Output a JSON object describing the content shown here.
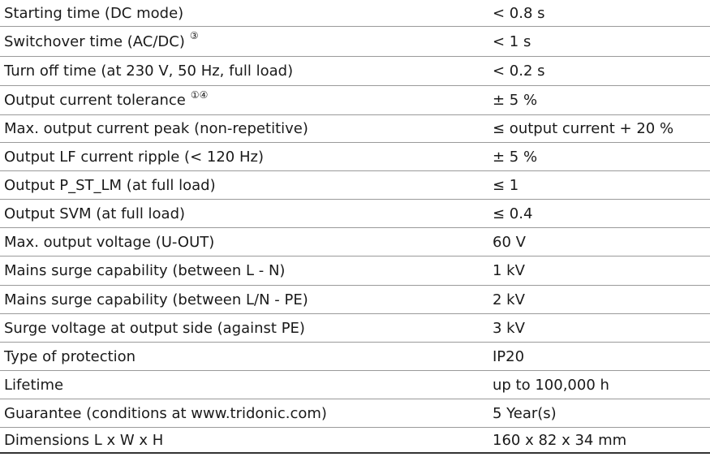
{
  "table": {
    "rows": [
      {
        "label": "Starting time (DC mode)",
        "value": "< 0.8 s"
      },
      {
        "label": "Switchover time (AC/DC)",
        "note": "③",
        "value": "< 1 s"
      },
      {
        "label": "Turn off time (at 230 V, 50 Hz, full load)",
        "value": "< 0.2 s"
      },
      {
        "label": "Output current tolerance",
        "note": "①④",
        "value": "± 5 %"
      },
      {
        "label": "Max. output current peak (non-repetitive)",
        "value": "≤ output current + 20 %"
      },
      {
        "label": "Output LF current ripple (< 120 Hz)",
        "value": "± 5 %"
      },
      {
        "label": "Output P_ST_LM (at full load)",
        "value": "≤ 1"
      },
      {
        "label": "Output SVM (at full load)",
        "value": "≤ 0.4"
      },
      {
        "label": "Max. output voltage (U-OUT)",
        "value": "60 V"
      },
      {
        "label": "Mains surge capability (between L - N)",
        "value": "1 kV"
      },
      {
        "label": "Mains surge capability (between L/N - PE)",
        "value": "2 kV"
      },
      {
        "label": "Surge voltage at output side (against PE)",
        "value": "3 kV"
      },
      {
        "label": "Type of protection",
        "value": "IP20"
      },
      {
        "label": "Lifetime",
        "value": "up to 100,000 h"
      },
      {
        "label": "Guarantee (conditions at www.tridonic.com)",
        "value": "5 Year(s)"
      },
      {
        "label": "Dimensions L x W x H",
        "value": "160 x 82 x 34 mm"
      }
    ]
  }
}
